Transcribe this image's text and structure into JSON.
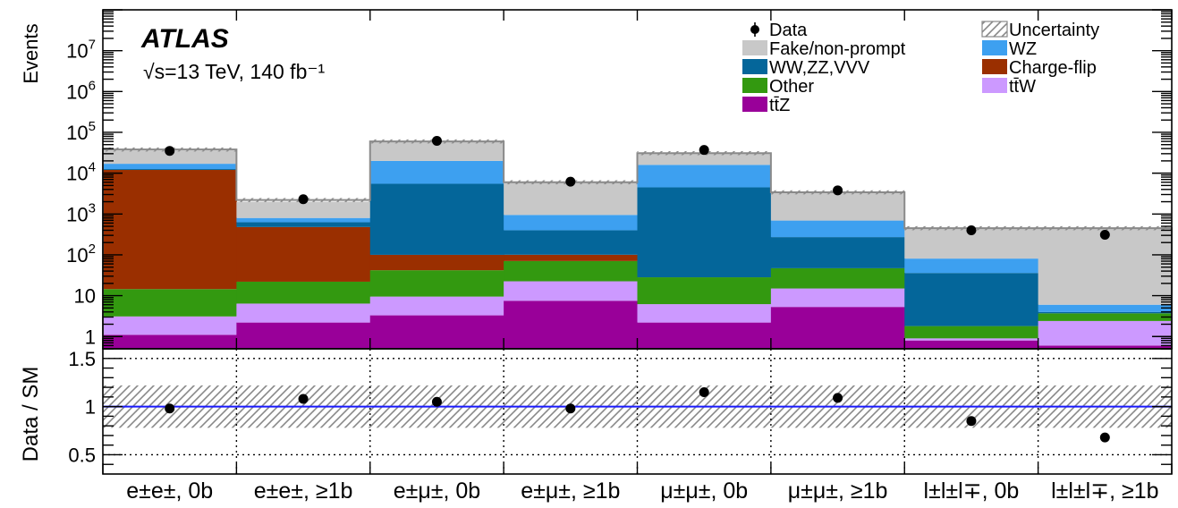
{
  "chart_data": [
    {
      "type": "bar",
      "stacked": true,
      "log_scale": true,
      "ylabel": "Events",
      "ylim": [
        0.5,
        100000000
      ],
      "y_tick_labels": [
        "1",
        "10",
        "10^2",
        "10^3",
        "10^4",
        "10^5",
        "10^6",
        "10^7"
      ],
      "experiment": "ATLAS",
      "energy_label": "√s=13 TeV, 140 fb⁻¹",
      "categories": [
        "e±e±, 0b",
        "e±e±, ≥1b",
        "e±μ±, 0b",
        "e±μ±, ≥1b",
        "μ±μ±, 0b",
        "μ±μ±, ≥1b",
        "l±l±l∓, 0b",
        "l±l±l∓, ≥1b"
      ],
      "legend": [
        {
          "name": "Data",
          "symbol": "marker"
        },
        {
          "name": "Uncertainty",
          "symbol": "hatch"
        },
        {
          "name": "Fake/non-prompt",
          "color": "#c8c8c8"
        },
        {
          "name": "WZ",
          "color": "#3da0f0"
        },
        {
          "name": "WW,ZZ,VVV",
          "color": "#04669a"
        },
        {
          "name": "Charge-flip",
          "color": "#9a2f00"
        },
        {
          "name": "Other",
          "color": "#339910"
        },
        {
          "name": "tt̄W",
          "color": "#cc99ff"
        },
        {
          "name": "tt̄Z",
          "color": "#990099"
        }
      ],
      "series": [
        {
          "name": "tt̄Z",
          "color": "#990099",
          "values": [
            1.1,
            2.2,
            3.3,
            7.5,
            2.2,
            5.3,
            0.8,
            0.6
          ]
        },
        {
          "name": "tt̄W",
          "color": "#cc99ff",
          "values": [
            2.0,
            4.2,
            6.2,
            15.0,
            4.0,
            9.7,
            0.1,
            1.8
          ]
        },
        {
          "name": "Other",
          "color": "#339910",
          "values": [
            11.4,
            15.6,
            32.5,
            48.0,
            22.0,
            32.0,
            0.9,
            1.3
          ]
        },
        {
          "name": "Charge-flip",
          "color": "#9a2f00",
          "values": [
            11985,
            458,
            58,
            30,
            0,
            0,
            0,
            0
          ]
        },
        {
          "name": "WW,ZZ,VVV",
          "color": "#04669a",
          "values": [
            600,
            150,
            5400,
            300,
            4470,
            225,
            34.2,
            0.3
          ]
        },
        {
          "name": "WZ",
          "color": "#3da0f0",
          "values": [
            4400,
            170,
            14500,
            550,
            11500,
            420,
            45,
            2
          ]
        },
        {
          "name": "Fake/non-prompt",
          "color": "#c8c8c8",
          "values": [
            19000,
            1200,
            40000,
            5100,
            15000,
            2700,
            370,
            444
          ]
        }
      ],
      "uncertainty": {
        "total": [
          38000,
          2200,
          60000,
          6000,
          31000,
          3400,
          450,
          450
        ]
      },
      "data": [
        35000,
        2300,
        62000,
        6200,
        37000,
        3800,
        400,
        310
      ]
    },
    {
      "type": "scatter",
      "ylabel": "Data / SM",
      "ylim": [
        0.3,
        1.6
      ],
      "y_tick_labels": [
        "0.5",
        "1",
        "1.5"
      ],
      "categories": [
        "e±e±, 0b",
        "e±e±, ≥1b",
        "e±μ±, 0b",
        "e±μ±, ≥1b",
        "μ±μ±, 0b",
        "μ±μ±, ≥1b",
        "l±l±l∓, 0b",
        "l±l±l∓, ≥1b"
      ],
      "values": [
        0.98,
        1.08,
        1.05,
        0.98,
        1.15,
        1.09,
        0.85,
        0.68
      ],
      "uncertainty_band": {
        "low": 0.78,
        "high": 1.22
      },
      "reference_line": 1.0,
      "reference_color": "#1a1aff"
    }
  ]
}
